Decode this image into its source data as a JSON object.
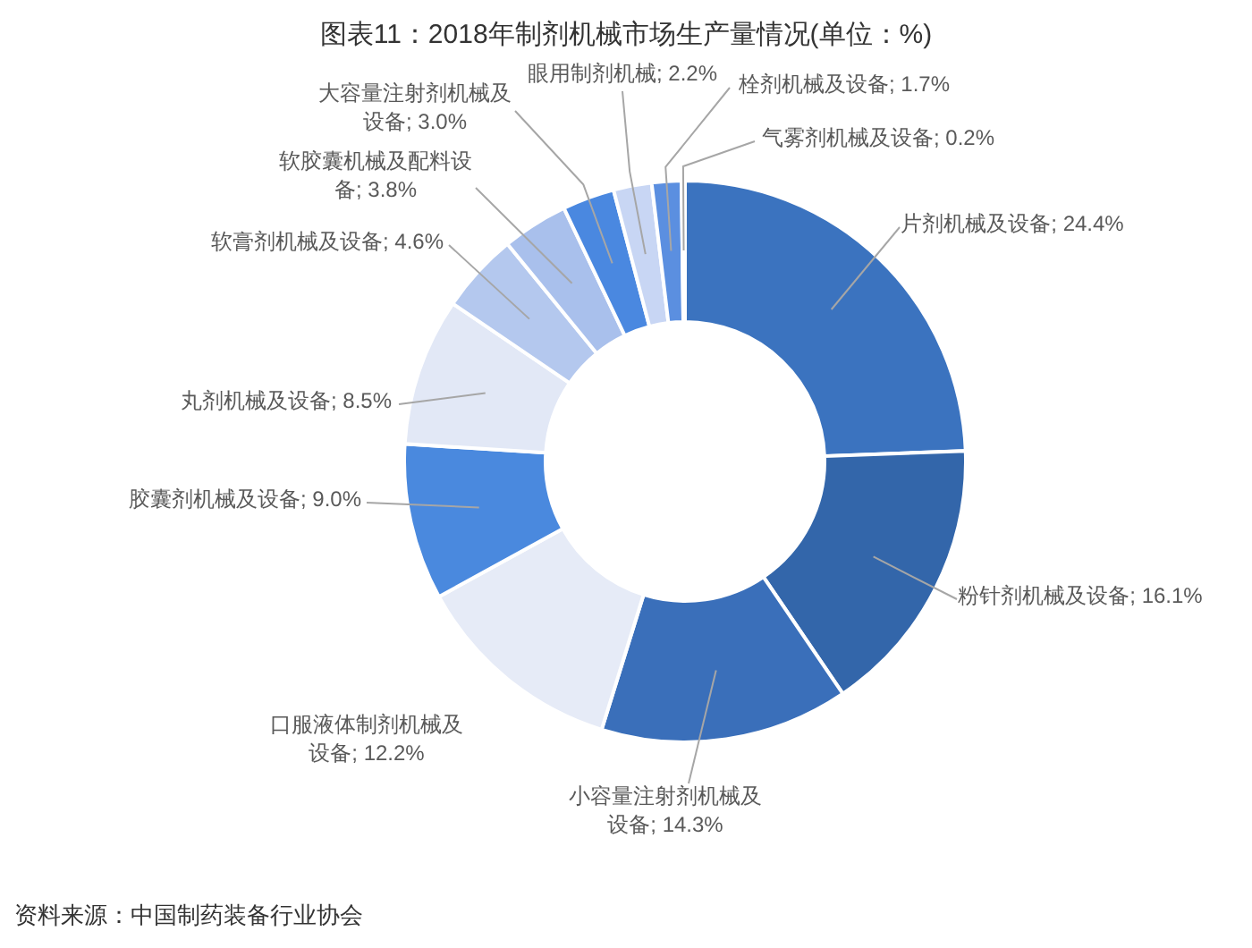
{
  "chart_data": {
    "type": "donut",
    "title": "图表11：2018年制剂机械市场生产量情况(单位：%)",
    "categories": [
      "片剂机械及设备",
      "粉针剂机械及设备",
      "小容量注射剂机械及设备",
      "口服液体制剂机械及设备",
      "胶囊剂机械及设备",
      "丸剂机械及设备",
      "软膏剂机械及设备",
      "软胶囊机械及配料设备",
      "大容量注射剂机械及设备",
      "眼用制剂机械",
      "栓剂机械及设备",
      "气雾剂机械及设备"
    ],
    "values": [
      24.4,
      16.1,
      14.3,
      12.2,
      9.0,
      8.5,
      4.6,
      3.8,
      3.0,
      2.2,
      1.7,
      0.2
    ],
    "value_labels": [
      "24.4%",
      "16.1%",
      "14.3%",
      "12.2%",
      "9.0%",
      "8.5%",
      "4.6%",
      "3.8%",
      "3.0%",
      "2.2%",
      "1.7%",
      "0.2%"
    ],
    "colors": [
      "#3b73bf",
      "#3366aa",
      "#3a6fba",
      "#e6ebf7",
      "#4a89de",
      "#e2e8f6",
      "#b4c8ee",
      "#a9c0ec",
      "#4a88e0",
      "#c8d6f4",
      "#5b8fe0",
      "#3b73bf"
    ],
    "annotations": [
      "资料来源：中国制药装备行业协会"
    ]
  }
}
